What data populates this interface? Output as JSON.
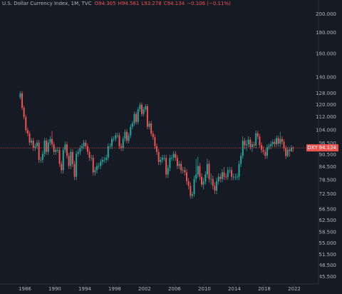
{
  "chart_data": {
    "type": "candlestick",
    "title": "U.S. Dollar Currency Index, 1M, TVC",
    "legend_values": [
      "O94.305",
      "H94.561",
      "L93.278",
      "C94.134",
      "−0.106 (−0.11%)"
    ],
    "log_scale": true,
    "grid": false,
    "up_color": "#26a69a",
    "down_color": "#ef5350",
    "last_price": {
      "symbol": "DXY",
      "value": 94.134
    },
    "xlim": [
      1982.67,
      2025.24
    ],
    "xticks": [
      1986,
      1990,
      1994,
      1998,
      2002,
      2006,
      2010,
      2014,
      2018,
      2022
    ],
    "ylim": [
      43.7,
      206.4
    ],
    "yticks": [
      {
        "value": 200,
        "label": "200.000"
      },
      {
        "value": 180,
        "label": "180.000"
      },
      {
        "value": 160,
        "label": "160.000"
      },
      {
        "value": 140,
        "label": "140.000"
      },
      {
        "value": 128,
        "label": "128.000"
      },
      {
        "value": 120,
        "label": "120.000"
      },
      {
        "value": 112,
        "label": "112.000"
      },
      {
        "value": 104,
        "label": "104.000"
      },
      {
        "value": 96.5,
        "label": "96.500"
      },
      {
        "value": 90.5,
        "label": "90.500"
      },
      {
        "value": 84.5,
        "label": "84.500"
      },
      {
        "value": 78.5,
        "label": "78.500"
      },
      {
        "value": 72.5,
        "label": "72.500"
      },
      {
        "value": 66.5,
        "label": "66.500"
      },
      {
        "value": 62.5,
        "label": "62.500"
      },
      {
        "value": 58.5,
        "label": "58.500"
      },
      {
        "value": 55,
        "label": "55.000"
      },
      {
        "value": 51.5,
        "label": "51.500"
      },
      {
        "value": 48.5,
        "label": "48.500"
      },
      {
        "value": 45.5,
        "label": "45.500"
      }
    ],
    "x": [
      1985.25,
      1985.5,
      1985.75,
      1986,
      1986.25,
      1986.5,
      1986.75,
      1987,
      1987.25,
      1987.5,
      1987.75,
      1988,
      1988.25,
      1988.5,
      1988.75,
      1989,
      1989.25,
      1989.5,
      1989.75,
      1990,
      1990.25,
      1990.5,
      1990.75,
      1991,
      1991.25,
      1991.5,
      1991.75,
      1992,
      1992.25,
      1992.5,
      1992.75,
      1993,
      1993.25,
      1993.5,
      1993.75,
      1994,
      1994.25,
      1994.5,
      1994.75,
      1995,
      1995.25,
      1995.5,
      1995.75,
      1996,
      1996.25,
      1996.5,
      1996.75,
      1997,
      1997.25,
      1997.5,
      1997.75,
      1998,
      1998.25,
      1998.5,
      1998.75,
      1999,
      1999.25,
      1999.5,
      1999.75,
      2000,
      2000.25,
      2000.5,
      2000.75,
      2001,
      2001.25,
      2001.5,
      2001.75,
      2002,
      2002.25,
      2002.5,
      2002.75,
      2003,
      2003.25,
      2003.5,
      2003.75,
      2004,
      2004.25,
      2004.5,
      2004.75,
      2005,
      2005.25,
      2005.5,
      2005.75,
      2006,
      2006.25,
      2006.5,
      2006.75,
      2007,
      2007.25,
      2007.5,
      2007.75,
      2008,
      2008.25,
      2008.5,
      2008.75,
      2009,
      2009.25,
      2009.5,
      2009.75,
      2010,
      2010.25,
      2010.5,
      2010.75,
      2011,
      2011.25,
      2011.5,
      2011.75,
      2012,
      2012.25,
      2012.5,
      2012.75,
      2013,
      2013.25,
      2013.5,
      2013.75,
      2014,
      2014.25,
      2014.5,
      2014.75,
      2015,
      2015.25,
      2015.5,
      2015.75,
      2016,
      2016.25,
      2016.5,
      2016.75,
      2017,
      2017.25,
      2017.5,
      2017.75,
      2018,
      2018.25,
      2018.5,
      2018.75,
      2019,
      2019.25,
      2019.5,
      2019.75,
      2020,
      2020.25,
      2020.5,
      2020.75,
      2021,
      2021.25,
      2021.5,
      2021.75
    ],
    "ohlc": [
      [
        125,
        129.5,
        123.5,
        128
      ],
      [
        128,
        129.5,
        116.5,
        118
      ],
      [
        118,
        119.5,
        110.5,
        112
      ],
      [
        112,
        113.5,
        102.5,
        104
      ],
      [
        104,
        105.5,
        100.5,
        102
      ],
      [
        102,
        103.5,
        95.5,
        97
      ],
      [
        97,
        99.5,
        95.5,
        98
      ],
      [
        98,
        99.5,
        92.5,
        94
      ],
      [
        94,
        96.5,
        92.5,
        95
      ],
      [
        95,
        98.5,
        93.5,
        97
      ],
      [
        97,
        98.5,
        86.5,
        88
      ],
      [
        88,
        89.5,
        86.5,
        88
      ],
      [
        88,
        92.5,
        86.5,
        91
      ],
      [
        91,
        99.5,
        89.5,
        98
      ],
      [
        98,
        99.5,
        90.5,
        92
      ],
      [
        92,
        98.5,
        90.5,
        97
      ],
      [
        97,
        100.5,
        95.5,
        99
      ],
      [
        99,
        103.5,
        94.5,
        96
      ],
      [
        96,
        97.5,
        90.5,
        92
      ],
      [
        92,
        94.5,
        90.5,
        93
      ],
      [
        93,
        94.5,
        91.5,
        93
      ],
      [
        93,
        94.5,
        84.5,
        86
      ],
      [
        86,
        87.5,
        81.5,
        83
      ],
      [
        83,
        94.5,
        81.5,
        93
      ],
      [
        93,
        97.5,
        91.5,
        96
      ],
      [
        96,
        97.5,
        88.5,
        90
      ],
      [
        90,
        91.5,
        83.5,
        85
      ],
      [
        85,
        93.5,
        83.5,
        92
      ],
      [
        92,
        93.5,
        84.5,
        86
      ],
      [
        86,
        87.5,
        78.5,
        80
      ],
      [
        80,
        92.5,
        78.5,
        91
      ],
      [
        91,
        93.5,
        89.5,
        92
      ],
      [
        92,
        95.5,
        90.5,
        94
      ],
      [
        94,
        96.5,
        92.5,
        95
      ],
      [
        95,
        98.5,
        93.5,
        97
      ],
      [
        97,
        98.5,
        93.5,
        95
      ],
      [
        95,
        96.5,
        90.5,
        92
      ],
      [
        92,
        93.5,
        87.5,
        89
      ],
      [
        89,
        90.5,
        87.5,
        89
      ],
      [
        89,
        90.5,
        80.5,
        82
      ],
      [
        82,
        84.5,
        80.5,
        83
      ],
      [
        83,
        86.5,
        81.5,
        85
      ],
      [
        85,
        86.5,
        83.5,
        85
      ],
      [
        85,
        88.5,
        83.5,
        87
      ],
      [
        87,
        89.5,
        85.5,
        88
      ],
      [
        88,
        89.5,
        86.5,
        88
      ],
      [
        88,
        90.5,
        86.5,
        89
      ],
      [
        89,
        96.5,
        87.5,
        95
      ],
      [
        95,
        96.5,
        93.5,
        95
      ],
      [
        95,
        100.5,
        93.5,
        99
      ],
      [
        99,
        100.5,
        97.5,
        99
      ],
      [
        99,
        102.5,
        97.5,
        101
      ],
      [
        101,
        102.5,
        99.5,
        101
      ],
      [
        101,
        102.5,
        93.5,
        95
      ],
      [
        95,
        96.5,
        92.5,
        94
      ],
      [
        94,
        100.5,
        92.5,
        99
      ],
      [
        99,
        104.5,
        97.5,
        103
      ],
      [
        103,
        104.5,
        96.5,
        98
      ],
      [
        98,
        102.5,
        96.5,
        101
      ],
      [
        101,
        107.5,
        99.5,
        106
      ],
      [
        106,
        109.5,
        104.5,
        108
      ],
      [
        108,
        115.5,
        106.5,
        114
      ],
      [
        114,
        115.5,
        107.5,
        109
      ],
      [
        109,
        118.5,
        107.5,
        117
      ],
      [
        117,
        121.5,
        115.5,
        120
      ],
      [
        120,
        121.5,
        112.5,
        114
      ],
      [
        114,
        118.5,
        112.5,
        117
      ],
      [
        117,
        120.5,
        115.5,
        119
      ],
      [
        119,
        120.5,
        104.5,
        106
      ],
      [
        106,
        109.5,
        104.5,
        108
      ],
      [
        108,
        109.5,
        100.5,
        102
      ],
      [
        102,
        103.5,
        98.5,
        100
      ],
      [
        100,
        101.5,
        93.5,
        95
      ],
      [
        95,
        96.5,
        90.5,
        92
      ],
      [
        92,
        93.5,
        85.5,
        87
      ],
      [
        87,
        89.5,
        85.5,
        88
      ],
      [
        88,
        90.5,
        86.5,
        89
      ],
      [
        89,
        90.5,
        87.5,
        89
      ],
      [
        89,
        90.5,
        79.5,
        81
      ],
      [
        81,
        85.5,
        79.5,
        84
      ],
      [
        84,
        90.5,
        82.5,
        89
      ],
      [
        89,
        90.5,
        87.5,
        89
      ],
      [
        89,
        92.5,
        87.5,
        91
      ],
      [
        91,
        92.5,
        87.5,
        89
      ],
      [
        89,
        90.5,
        83.5,
        85
      ],
      [
        85,
        87.5,
        83.5,
        86
      ],
      [
        86,
        87.5,
        81.5,
        83
      ],
      [
        83,
        84.5,
        81.5,
        83
      ],
      [
        83,
        84.5,
        80.5,
        82
      ],
      [
        82,
        83.5,
        76.5,
        78
      ],
      [
        78,
        79.5,
        74.5,
        76
      ],
      [
        76,
        77.5,
        70.7,
        71.8
      ],
      [
        71.8,
        73.5,
        70.7,
        72.5
      ],
      [
        72.5,
        80.5,
        71.5,
        79
      ],
      [
        79,
        88.5,
        77.5,
        81
      ],
      [
        81,
        89.5,
        79.5,
        85
      ],
      [
        85,
        86.5,
        78.5,
        80
      ],
      [
        80,
        81.5,
        75.5,
        76.5
      ],
      [
        76.5,
        79.5,
        74.5,
        77.9
      ],
      [
        77.9,
        82.5,
        76.5,
        81
      ],
      [
        81,
        88.5,
        79.5,
        86
      ],
      [
        86,
        87.5,
        77.5,
        79
      ],
      [
        79,
        81.5,
        76.5,
        79
      ],
      [
        79,
        80.5,
        74.5,
        76
      ],
      [
        76,
        77.5,
        72.5,
        74
      ],
      [
        74,
        79.5,
        72.5,
        78
      ],
      [
        78,
        81.5,
        76.5,
        80
      ],
      [
        80,
        81.5,
        77.5,
        79
      ],
      [
        79,
        83.5,
        77.5,
        82
      ],
      [
        82,
        84.5,
        78.5,
        80
      ],
      [
        80,
        81.5,
        78.5,
        79.8
      ],
      [
        79.8,
        84.5,
        78.5,
        83
      ],
      [
        83,
        84.5,
        81.5,
        83
      ],
      [
        83,
        84.5,
        78.5,
        80
      ],
      [
        80,
        81.5,
        78.5,
        80
      ],
      [
        80,
        81.5,
        78.5,
        80
      ],
      [
        80,
        81.5,
        78.5,
        80
      ],
      [
        80,
        87.5,
        78.5,
        86
      ],
      [
        86,
        91.5,
        84.5,
        90
      ],
      [
        90,
        100.5,
        88.5,
        98
      ],
      [
        98,
        99.5,
        93.5,
        95.5
      ],
      [
        95.5,
        98.5,
        92.5,
        96
      ],
      [
        96,
        100.5,
        94.5,
        98.6
      ],
      [
        98.6,
        100.1,
        93.1,
        94.6
      ],
      [
        94.6,
        97.5,
        91.9,
        96
      ],
      [
        96,
        97.5,
        93.9,
        95.4
      ],
      [
        95.4,
        103.8,
        93.9,
        102.2
      ],
      [
        102.2,
        103.8,
        98.8,
        100.3
      ],
      [
        100.3,
        101.8,
        94.1,
        95.6
      ],
      [
        95.6,
        97.1,
        91.5,
        93
      ],
      [
        93,
        95.1,
        90.6,
        92.1
      ],
      [
        92.1,
        93.6,
        88.5,
        90
      ],
      [
        90,
        96,
        88.5,
        94.5
      ],
      [
        94.5,
        96.5,
        93,
        95
      ],
      [
        95,
        97.7,
        93.5,
        96.2
      ],
      [
        96.2,
        98.8,
        94.7,
        97.3
      ],
      [
        97.3,
        98.8,
        94.6,
        96.1
      ],
      [
        96.1,
        100.9,
        94.6,
        99.4
      ],
      [
        99.4,
        100.9,
        94.9,
        96.4
      ],
      [
        96.4,
        103,
        94.6,
        99
      ],
      [
        99,
        100.5,
        95.9,
        97.4
      ],
      [
        97.4,
        98.9,
        92.4,
        93.9
      ],
      [
        93.9,
        95.4,
        88.4,
        89.9
      ],
      [
        89.9,
        94.7,
        89.2,
        93.2
      ],
      [
        93.2,
        94.7,
        89.5,
        92.4
      ],
      [
        92.4,
        95.7,
        91.9,
        94.2
      ],
      [
        94.2,
        94.9,
        91.9,
        94.134
      ]
    ]
  }
}
